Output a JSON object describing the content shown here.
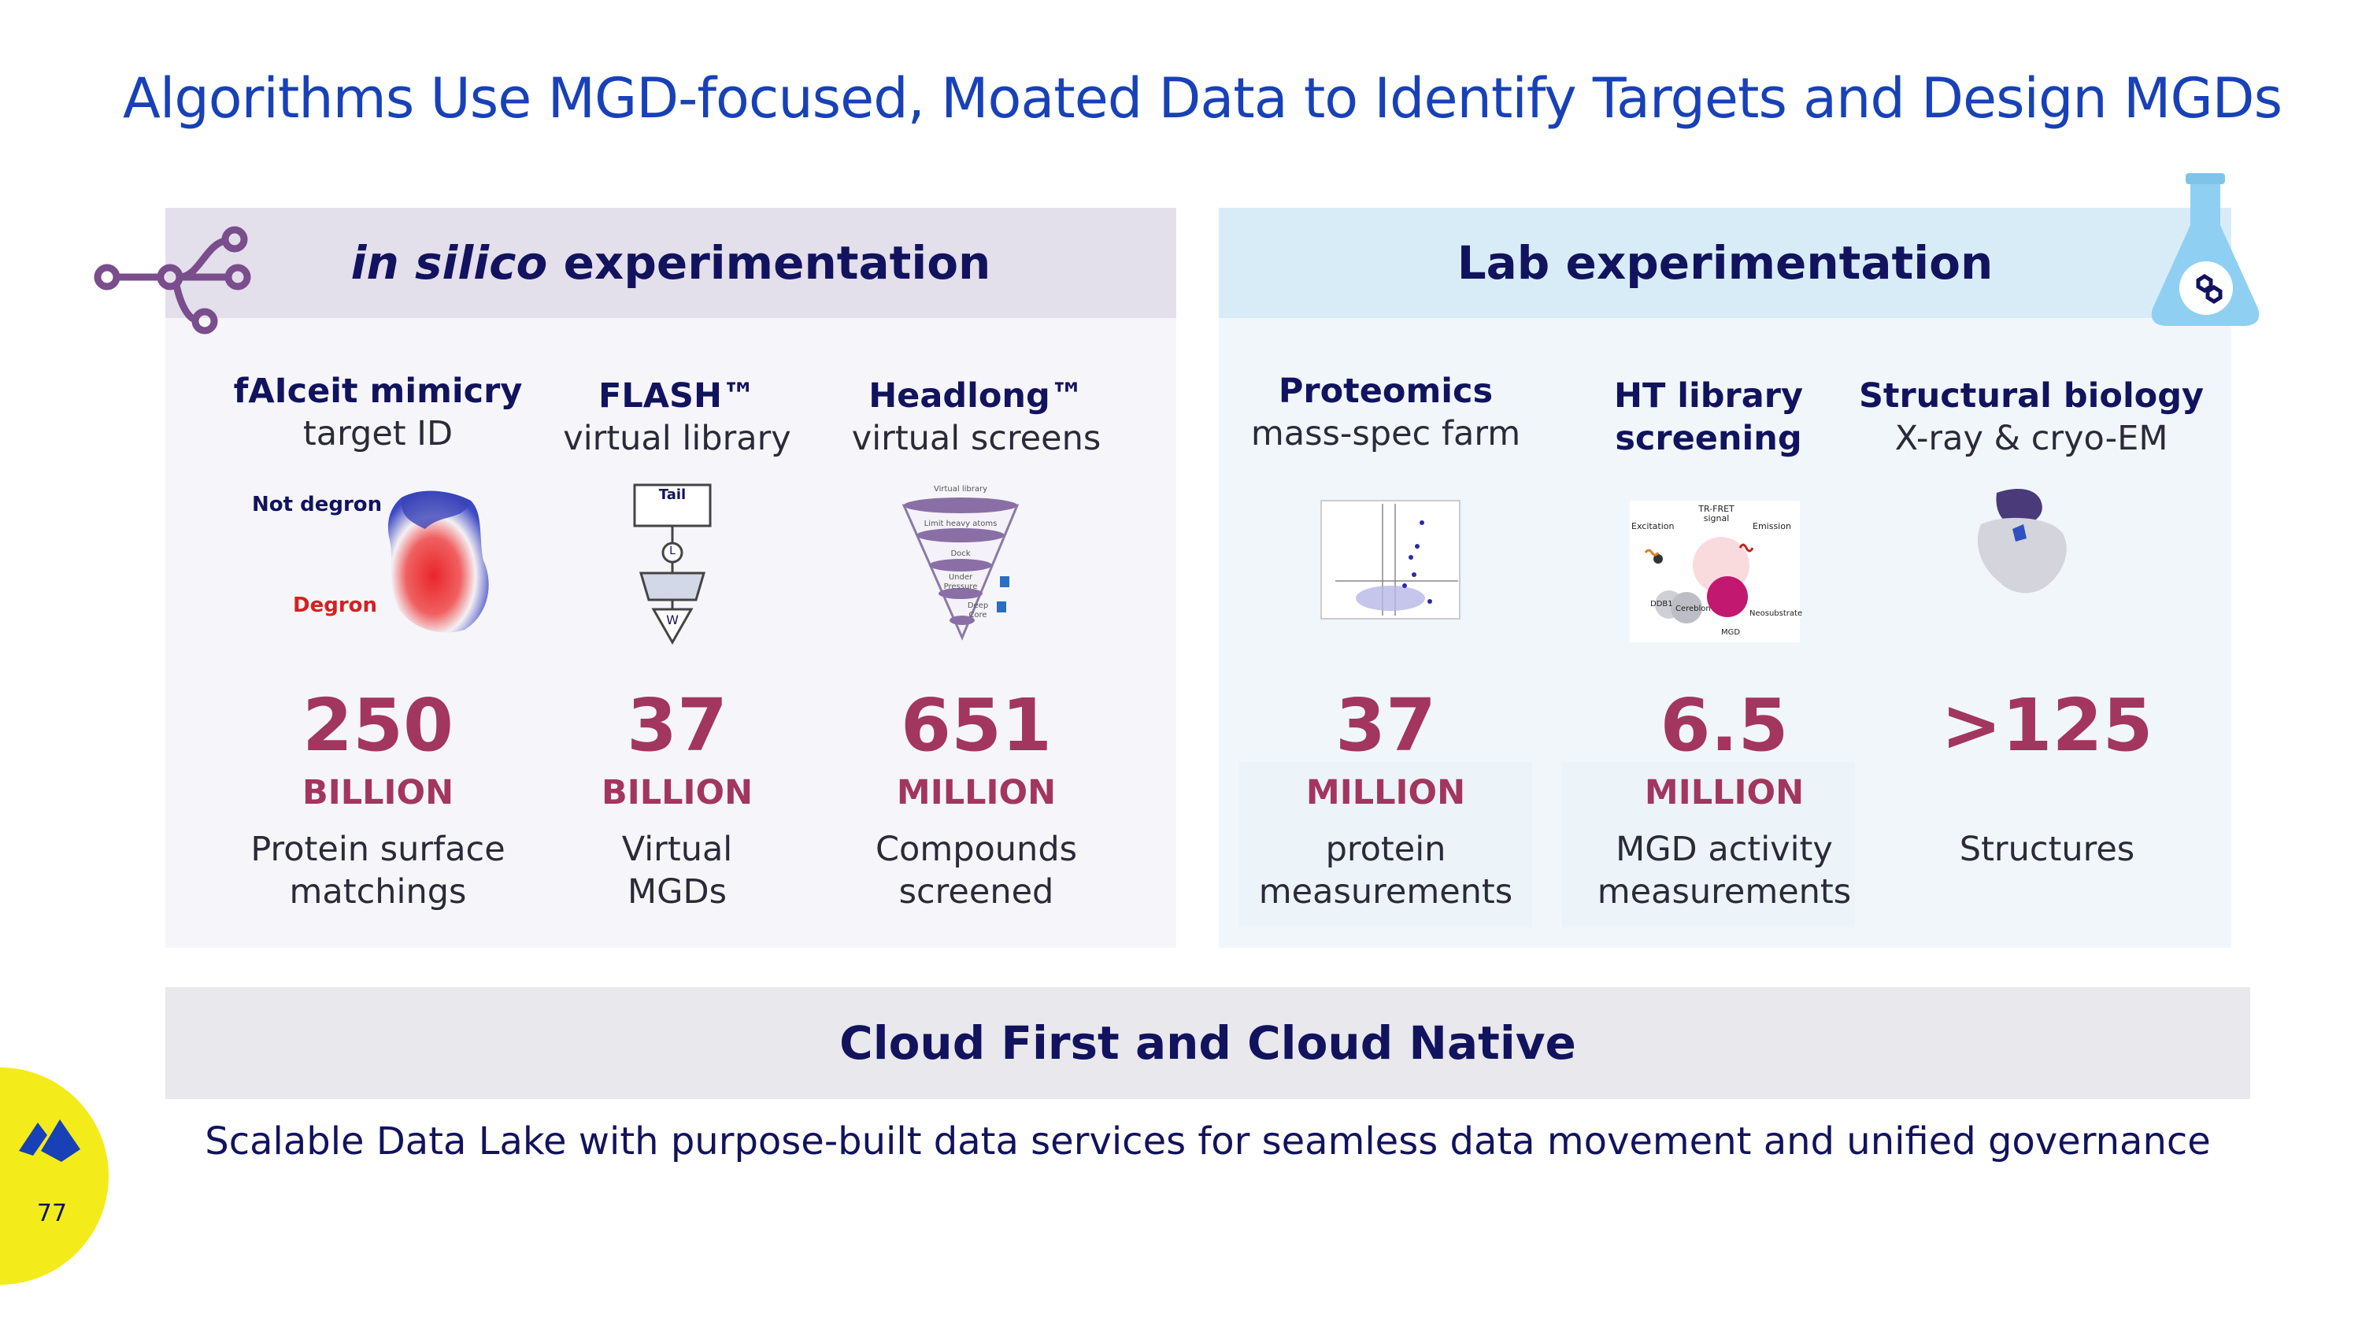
{
  "title": "Algorithms Use MGD-focused, Moated Data to Identify Targets and Design MGDs",
  "left_panel": {
    "heading_italic": "in silico",
    "heading_rest": "experimentation",
    "columns": [
      {
        "title": "fAIceit mimicry",
        "subtitle": "target ID",
        "value": "250",
        "unit": "BILLION",
        "desc1": "Protein surface",
        "desc2": "matchings"
      },
      {
        "title": "FLASH™",
        "subtitle": "virtual library",
        "value": "37",
        "unit": "BILLION",
        "desc1": "Virtual",
        "desc2": "MGDs"
      },
      {
        "title": "Headlong™",
        "subtitle": "virtual screens",
        "value": "651",
        "unit": "MILLION",
        "desc1": "Compounds",
        "desc2": "screened"
      }
    ],
    "fig_labels": {
      "not_degron": "Not degron",
      "degron": "Degron",
      "tail": "Tail",
      "l": "L",
      "w": "W",
      "funnel_top": "Virtual library",
      "funnel_2": "Limit heavy atoms",
      "funnel_3": "Dock",
      "funnel_4a": "Under",
      "funnel_4b": "Pressure",
      "funnel_5a": "Deep",
      "funnel_5b": "Core"
    }
  },
  "right_panel": {
    "heading": "Lab experimentation",
    "columns": [
      {
        "title": "Proteomics",
        "subtitle": "mass-spec farm",
        "value": "37",
        "unit": "MILLION",
        "desc1": "protein",
        "desc2": "measurements"
      },
      {
        "title": "HT library",
        "title2": "screening",
        "value": "6.5",
        "unit": "MILLION",
        "desc1": "MGD activity",
        "desc2": "measurements"
      },
      {
        "title": "Structural biology",
        "subtitle": "X-ray & cryo-EM",
        "value": ">125",
        "unit": "",
        "desc1": "Structures",
        "desc2": ""
      }
    ],
    "fig_labels": {
      "trfret": "TR-FRET",
      "signal": "signal",
      "excitation": "Excitation",
      "emission": "Emission",
      "ddb1": "DDB1",
      "cereblon": "Cereblon",
      "neosubstrate": "Neosubstrate",
      "mgd": "MGD"
    }
  },
  "cloud": {
    "heading": "Cloud First and Cloud Native",
    "text": "Scalable Data Lake with purpose-built data services for seamless data movement and unified governance"
  },
  "page_number": "77",
  "colors": {
    "title_blue": "#1841b8",
    "navy": "#12135e",
    "accent": "#a2365f",
    "yellow": "#f3ec1a"
  }
}
